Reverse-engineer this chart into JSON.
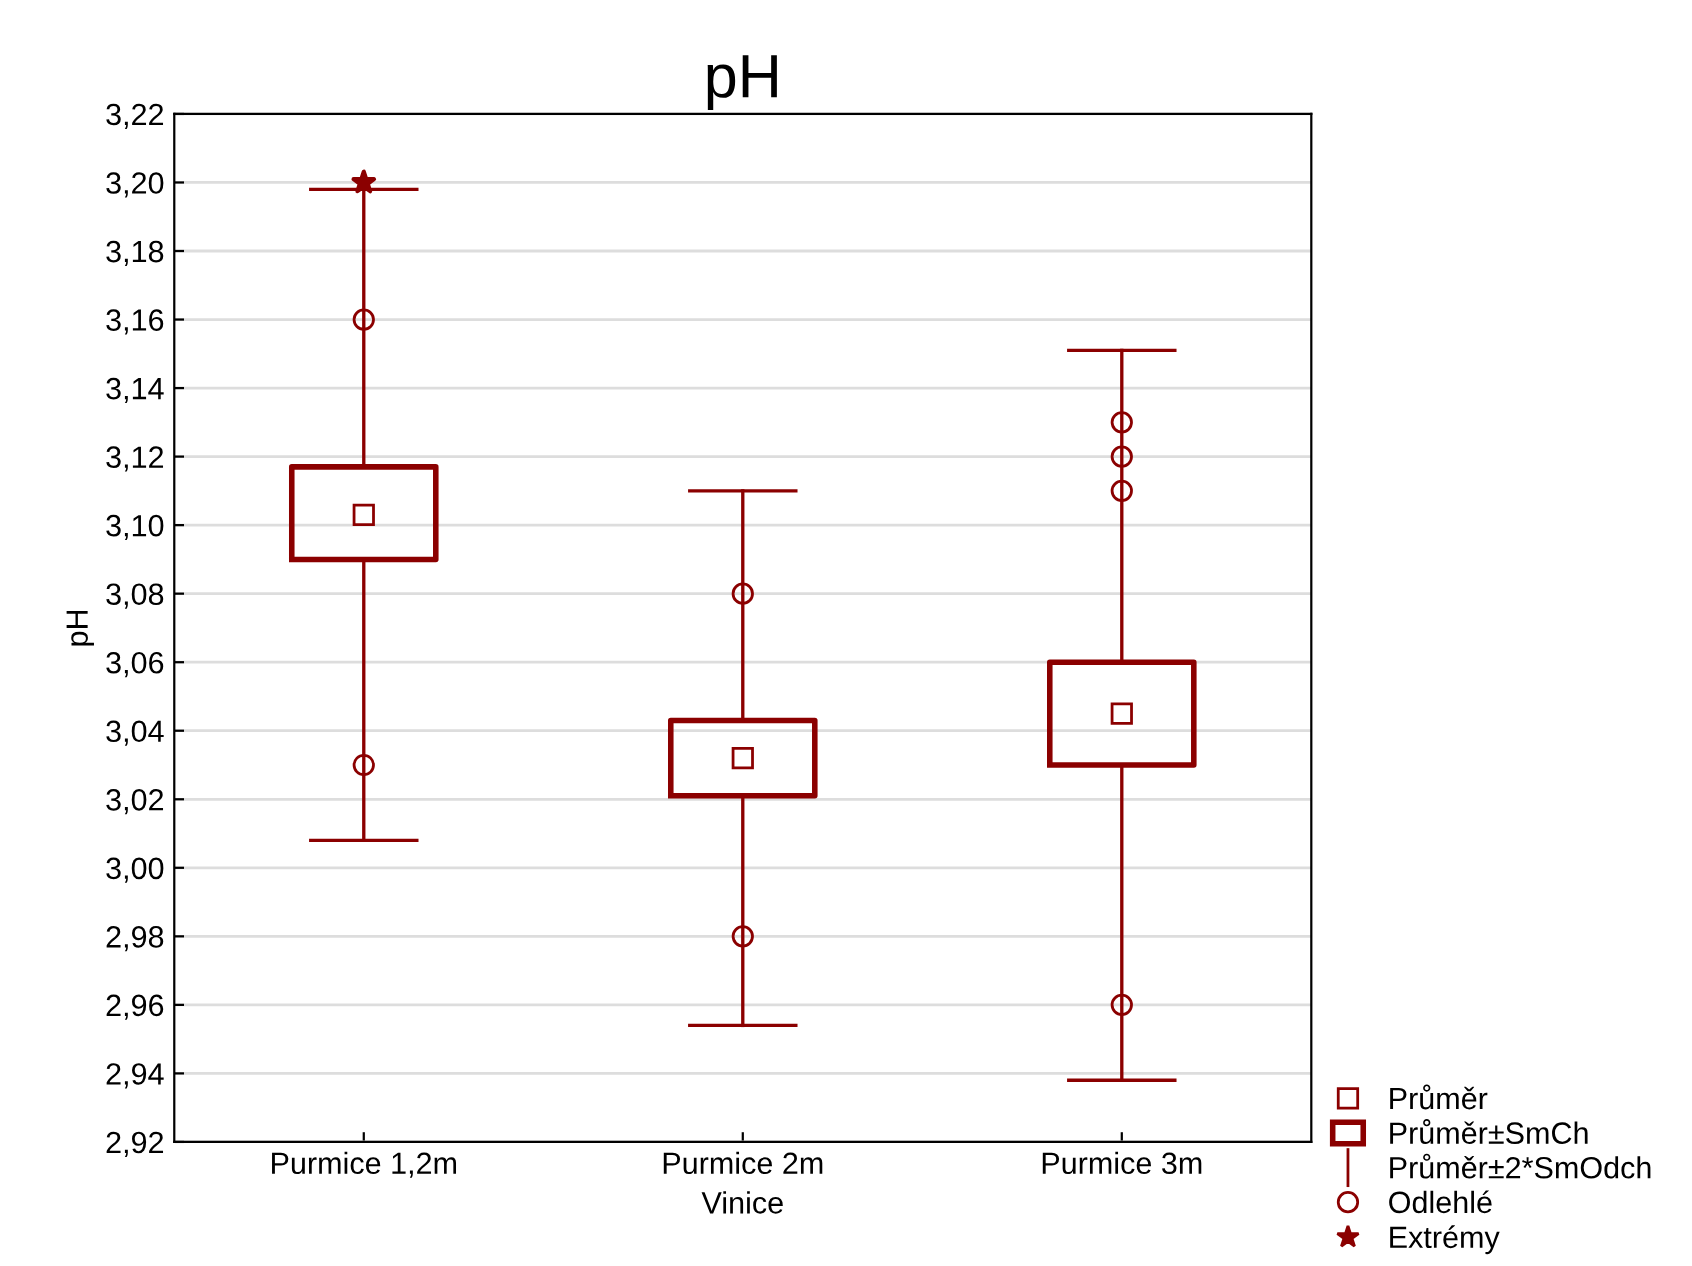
{
  "chart_data": {
    "type": "box",
    "title": "pH",
    "xlabel": "Vinice",
    "ylabel": "pH",
    "categories": [
      "Purmice 1,2m",
      "Purmice 2m",
      "Purmice 3m"
    ],
    "color": "#8b0000",
    "boxes": [
      {
        "low": 3.008,
        "q1": 3.09,
        "q3": 3.117,
        "high": 3.198,
        "mean": 3.103,
        "outliers": [
          3.16,
          3.03
        ]
      },
      {
        "low": 2.954,
        "q1": 3.021,
        "q3": 3.043,
        "high": 3.11,
        "mean": 3.032,
        "outliers": [
          3.08,
          2.98
        ]
      },
      {
        "low": 2.938,
        "q1": 3.03,
        "q3": 3.06,
        "high": 3.151,
        "mean": 3.045,
        "outliers": [
          3.13,
          3.12,
          3.11,
          2.96
        ]
      }
    ],
    "series": [
      {
        "type": "scatter",
        "name": "Extrémy",
        "color": "#8b0000",
        "x": [
          "Purmice 1,2m"
        ],
        "values": [
          3.2
        ],
        "marker": "star"
      }
    ],
    "annotations": [
      "Průměr",
      "Průměr±SmCh",
      "Průměr±2*SmOdch",
      "Odlehlé"
    ],
    "ylim": [
      2.92,
      3.22
    ],
    "yticks": [
      {
        "value": 2.92,
        "label": "2,92"
      },
      {
        "value": 2.94,
        "label": "2,94"
      },
      {
        "value": 2.96,
        "label": "2,96"
      },
      {
        "value": 2.98,
        "label": "2,98"
      },
      {
        "value": 3.0,
        "label": "3,00"
      },
      {
        "value": 3.02,
        "label": "3,02"
      },
      {
        "value": 3.04,
        "label": "3,04"
      },
      {
        "value": 3.06,
        "label": "3,06"
      },
      {
        "value": 3.08,
        "label": "3,08"
      },
      {
        "value": 3.1,
        "label": "3,10"
      },
      {
        "value": 3.12,
        "label": "3,12"
      },
      {
        "value": 3.14,
        "label": "3,14"
      },
      {
        "value": 3.16,
        "label": "3,16"
      },
      {
        "value": 3.18,
        "label": "3,18"
      },
      {
        "value": 3.2,
        "label": "3,20"
      },
      {
        "value": 3.22,
        "label": "3,22"
      }
    ],
    "grid": "y",
    "legend": "bottom right"
  }
}
